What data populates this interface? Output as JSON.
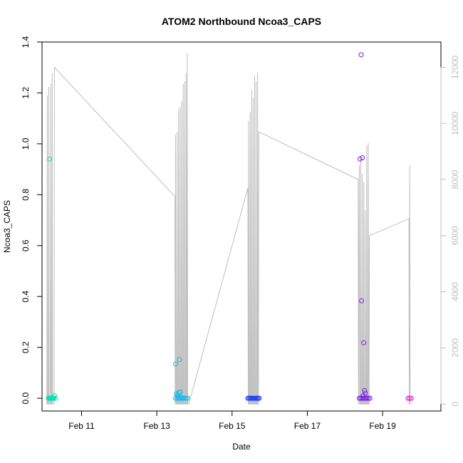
{
  "chart_data": {
    "type": "scatter",
    "title": "ATOM2 Northbound Ncoa3_CAPS",
    "xlabel": "Date",
    "ylabel": "Ncoa3_CAPS",
    "x_ticks": [
      "Feb 11",
      "Feb 13",
      "Feb 15",
      "Feb 17",
      "Feb 19"
    ],
    "x_tick_days": [
      11,
      13,
      15,
      17,
      19
    ],
    "xlim": [
      9.95,
      20.55
    ],
    "ylim": [
      -0.05,
      1.4
    ],
    "y_ticks": [
      "0.0",
      "0.2",
      "0.4",
      "0.6",
      "0.8",
      "1.0",
      "1.2",
      "1.4"
    ],
    "y2lim": [
      -250,
      12900
    ],
    "y2_ticks": [
      "0",
      "2000",
      "4000",
      "6000",
      "8000",
      "10000",
      "12000"
    ],
    "grid": false,
    "line_color": "#bebebe",
    "series": [
      {
        "color": "#00e0b0",
        "points": [
          [
            10.15,
            0.94
          ],
          [
            10.12,
            0.0
          ],
          [
            10.14,
            0.0
          ],
          [
            10.16,
            0.0
          ],
          [
            10.18,
            0.0
          ],
          [
            10.2,
            0.0
          ],
          [
            10.22,
            0.0
          ],
          [
            10.24,
            0.0
          ],
          [
            10.26,
            0.0
          ],
          [
            10.28,
            0.01
          ],
          [
            10.3,
            0.0
          ]
        ]
      },
      {
        "color": "#1ab8e8",
        "points": [
          [
            13.5,
            0.135
          ],
          [
            13.6,
            0.152
          ],
          [
            13.52,
            0.018
          ],
          [
            13.55,
            0.012
          ],
          [
            13.58,
            0.022
          ],
          [
            13.62,
            0.025
          ],
          [
            13.5,
            0.0
          ],
          [
            13.54,
            0.0
          ],
          [
            13.58,
            0.0
          ],
          [
            13.62,
            0.0
          ],
          [
            13.66,
            0.0
          ],
          [
            13.7,
            0.0
          ],
          [
            13.74,
            0.0
          ],
          [
            13.78,
            0.0
          ],
          [
            13.82,
            0.0
          ],
          [
            13.56,
            0.008
          ],
          [
            13.64,
            0.005
          ]
        ]
      },
      {
        "color": "#1e40f0",
        "points": [
          [
            15.42,
            0.0
          ],
          [
            15.45,
            0.0
          ],
          [
            15.48,
            0.0
          ],
          [
            15.51,
            0.0
          ],
          [
            15.54,
            0.0
          ],
          [
            15.57,
            0.0
          ],
          [
            15.6,
            0.0
          ],
          [
            15.63,
            0.0
          ],
          [
            15.66,
            0.0
          ],
          [
            15.69,
            0.0
          ],
          [
            15.72,
            0.0
          ]
        ]
      },
      {
        "color": "#7a1ee8",
        "points": [
          [
            18.43,
            1.35
          ],
          [
            18.4,
            0.94
          ],
          [
            18.46,
            0.945
          ],
          [
            18.44,
            0.383
          ],
          [
            18.5,
            0.218
          ],
          [
            18.52,
            0.03
          ],
          [
            18.54,
            0.02
          ],
          [
            18.48,
            0.01
          ],
          [
            18.38,
            0.0
          ],
          [
            18.42,
            0.0
          ],
          [
            18.46,
            0.0
          ],
          [
            18.5,
            0.0
          ],
          [
            18.54,
            0.0
          ],
          [
            18.58,
            0.0
          ],
          [
            18.62,
            0.0
          ],
          [
            18.66,
            0.0
          ]
        ]
      },
      {
        "color": "#e020e8",
        "points": [
          [
            19.68,
            0.0
          ],
          [
            19.72,
            0.0
          ],
          [
            19.76,
            0.0
          ]
        ]
      }
    ],
    "line_y2": [
      [
        10.08,
        0
      ],
      [
        10.09,
        11000
      ],
      [
        10.1,
        0
      ],
      [
        10.12,
        0
      ],
      [
        10.13,
        11300
      ],
      [
        10.14,
        0
      ],
      [
        10.17,
        0
      ],
      [
        10.18,
        11400
      ],
      [
        10.19,
        0
      ],
      [
        10.21,
        0
      ],
      [
        10.22,
        11800
      ],
      [
        10.23,
        0
      ],
      [
        10.27,
        0
      ],
      [
        10.28,
        12000
      ],
      [
        13.48,
        7400
      ],
      [
        13.49,
        0
      ],
      [
        13.5,
        9600
      ],
      [
        13.51,
        0
      ],
      [
        13.53,
        0
      ],
      [
        13.54,
        9700
      ],
      [
        13.55,
        0
      ],
      [
        13.57,
        0
      ],
      [
        13.58,
        10500
      ],
      [
        13.59,
        0
      ],
      [
        13.61,
        0
      ],
      [
        13.62,
        10600
      ],
      [
        13.63,
        0
      ],
      [
        13.65,
        0
      ],
      [
        13.66,
        10800
      ],
      [
        13.67,
        0
      ],
      [
        13.69,
        0
      ],
      [
        13.7,
        11400
      ],
      [
        13.71,
        0
      ],
      [
        13.73,
        0
      ],
      [
        13.74,
        11500
      ],
      [
        13.75,
        0
      ],
      [
        13.77,
        0
      ],
      [
        13.78,
        11800
      ],
      [
        13.79,
        0
      ],
      [
        13.8,
        0
      ],
      [
        13.81,
        12500
      ],
      [
        13.82,
        0
      ],
      [
        13.85,
        0
      ],
      [
        15.42,
        7700
      ],
      [
        15.43,
        0
      ],
      [
        15.44,
        10100
      ],
      [
        15.45,
        0
      ],
      [
        15.47,
        0
      ],
      [
        15.48,
        10400
      ],
      [
        15.49,
        0
      ],
      [
        15.51,
        0
      ],
      [
        15.52,
        11200
      ],
      [
        15.53,
        0
      ],
      [
        15.55,
        0
      ],
      [
        15.56,
        10900
      ],
      [
        15.57,
        0
      ],
      [
        15.59,
        0
      ],
      [
        15.6,
        11700
      ],
      [
        15.61,
        0
      ],
      [
        15.63,
        0
      ],
      [
        15.64,
        11500
      ],
      [
        15.65,
        0
      ],
      [
        15.67,
        0
      ],
      [
        15.68,
        11800
      ],
      [
        15.69,
        0
      ],
      [
        15.7,
        0
      ],
      [
        15.71,
        9700
      ],
      [
        18.35,
        8000
      ],
      [
        18.36,
        0
      ],
      [
        18.38,
        8500
      ],
      [
        18.39,
        0
      ],
      [
        18.41,
        0
      ],
      [
        18.42,
        8700
      ],
      [
        18.43,
        0
      ],
      [
        18.45,
        0
      ],
      [
        18.46,
        8200
      ],
      [
        18.47,
        0
      ],
      [
        18.49,
        0
      ],
      [
        18.5,
        7900
      ],
      [
        18.51,
        0
      ],
      [
        18.53,
        0
      ],
      [
        18.54,
        6900
      ],
      [
        18.55,
        0
      ],
      [
        18.57,
        0
      ],
      [
        18.58,
        9200
      ],
      [
        18.59,
        0
      ],
      [
        18.61,
        0
      ],
      [
        18.62,
        9300
      ],
      [
        18.63,
        0
      ],
      [
        18.64,
        0
      ],
      [
        18.65,
        6000
      ],
      [
        19.7,
        6600
      ],
      [
        19.71,
        0
      ],
      [
        19.72,
        8500
      ],
      [
        19.73,
        0
      ]
    ]
  }
}
